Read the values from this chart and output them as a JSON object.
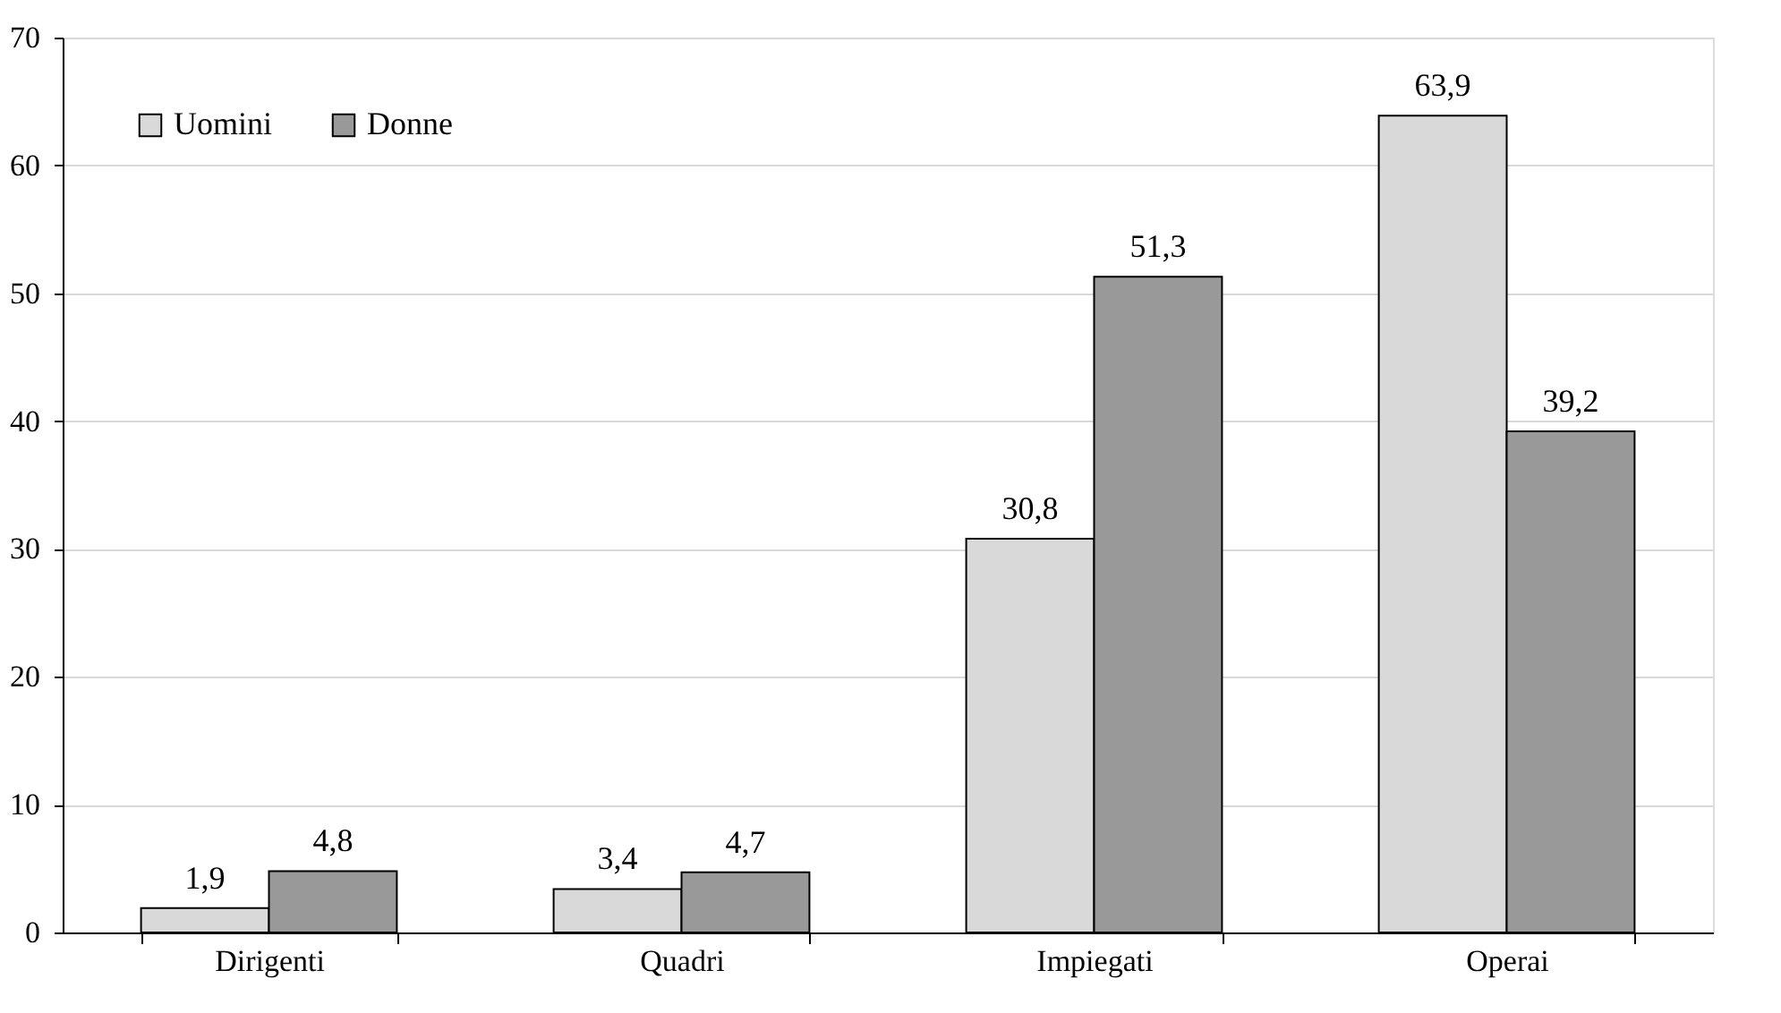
{
  "chart_data": {
    "type": "bar",
    "categories": [
      "Dirigenti",
      "Quadri",
      "Impiegati",
      "Operai"
    ],
    "series": [
      {
        "name": "Uomini",
        "color": "#d9d9d9",
        "values": [
          1.9,
          3.4,
          30.8,
          63.9
        ],
        "value_labels": [
          "1,9",
          "3,4",
          "30,8",
          "63,9"
        ]
      },
      {
        "name": "Donne",
        "color": "#999999",
        "values": [
          4.8,
          4.7,
          51.3,
          39.2
        ],
        "value_labels": [
          "4,8",
          "4,7",
          "51,3",
          "39,2"
        ]
      }
    ],
    "ylim": [
      0,
      70
    ],
    "yticks": [
      0,
      10,
      20,
      30,
      40,
      50,
      60,
      70
    ],
    "grid": "y",
    "legend": "top left"
  }
}
